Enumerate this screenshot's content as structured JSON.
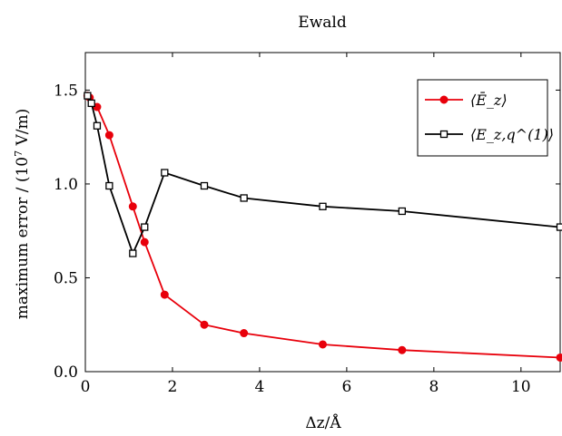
{
  "chart_data": {
    "type": "line",
    "title": "Ewald",
    "xlabel": "Δz/Å",
    "ylabel": "maximum error / (10",
    "ylabel_sup": "7",
    "ylabel_unit": " V/m)",
    "xlim": [
      0,
      10.9
    ],
    "ylim": [
      0,
      1.7
    ],
    "xticks": [
      0,
      2,
      4,
      6,
      8,
      10
    ],
    "xtick_labels": [
      "0",
      "2",
      "4",
      "6",
      "8",
      "10"
    ],
    "yticks": [
      0,
      0.5,
      1.0,
      1.5
    ],
    "ytick_labels": [
      "0.0",
      "0.5",
      "1.0",
      "1.5"
    ],
    "grid": false,
    "legend_position": "top-right",
    "series": [
      {
        "name": "⟨Ē_z⟩",
        "color": "#e8000b",
        "marker": "filled-circle",
        "x": [
          0.05,
          0.1,
          0.27,
          0.55,
          1.09,
          1.36,
          1.82,
          2.73,
          3.64,
          5.45,
          7.27,
          10.9
        ],
        "y": [
          1.47,
          1.46,
          1.41,
          1.26,
          0.88,
          0.69,
          0.41,
          0.25,
          0.205,
          0.145,
          0.115,
          0.075
        ]
      },
      {
        "name": "⟨E_z,q^(1)⟩",
        "color": "#000000",
        "marker": "open-square",
        "x": [
          0.05,
          0.14,
          0.27,
          0.55,
          1.09,
          1.36,
          1.82,
          2.73,
          3.64,
          5.45,
          7.27,
          10.9
        ],
        "y": [
          1.47,
          1.43,
          1.31,
          0.99,
          0.63,
          0.77,
          1.06,
          0.99,
          0.925,
          0.88,
          0.855,
          0.77
        ]
      }
    ]
  }
}
